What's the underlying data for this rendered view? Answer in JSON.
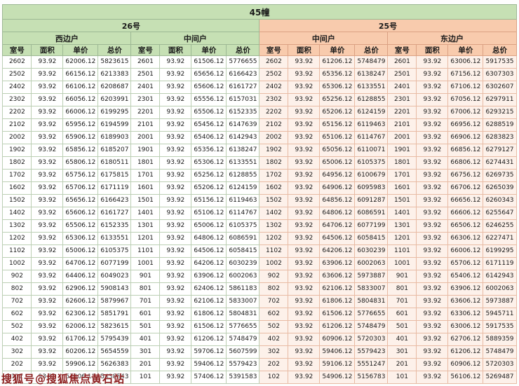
{
  "title": "45幢",
  "groups": [
    {
      "label": "26号"
    },
    {
      "label": "25号"
    }
  ],
  "sections": [
    "西边户",
    "中间户",
    "中间户",
    "东边户"
  ],
  "column_headers": [
    "室号",
    "面积",
    "单价",
    "总价"
  ],
  "watermark": "搜狐号@搜狐焦点黄石站",
  "colors": {
    "header_green": "#c6e0b4",
    "header_peach": "#f8cbad",
    "right_half_tint": "#fdf1ea",
    "left_border": "#bccfb4",
    "right_border": "#e8bba4",
    "watermark": "#8b1d1d"
  },
  "rows": [
    [
      "2602",
      "93.92",
      "62006.12",
      "5823615",
      "2601",
      "93.92",
      "61506.12",
      "5776655",
      "2602",
      "93.92",
      "61206.12",
      "5748479",
      "2601",
      "93.92",
      "63006.12",
      "5917535"
    ],
    [
      "2502",
      "93.92",
      "66156.12",
      "6213383",
      "2501",
      "93.92",
      "65656.12",
      "6166423",
      "2502",
      "93.92",
      "65356.12",
      "6138247",
      "2501",
      "93.92",
      "67156.12",
      "6307303"
    ],
    [
      "2402",
      "93.92",
      "66106.12",
      "6208687",
      "2401",
      "93.92",
      "65606.12",
      "6161727",
      "2402",
      "93.92",
      "65306.12",
      "6133551",
      "2401",
      "93.92",
      "67106.12",
      "6302607"
    ],
    [
      "2302",
      "93.92",
      "66056.12",
      "6203991",
      "2301",
      "93.92",
      "65556.12",
      "6157031",
      "2302",
      "93.92",
      "65256.12",
      "6128855",
      "2301",
      "93.92",
      "67056.12",
      "6297911"
    ],
    [
      "2202",
      "93.92",
      "66006.12",
      "6199295",
      "2201",
      "93.92",
      "65506.12",
      "6152335",
      "2202",
      "93.92",
      "65206.12",
      "6124159",
      "2201",
      "93.92",
      "67006.12",
      "6293215"
    ],
    [
      "2102",
      "93.92",
      "65956.12",
      "6194599",
      "2101",
      "93.92",
      "65456.12",
      "6147639",
      "2102",
      "93.92",
      "65156.12",
      "6119463",
      "2101",
      "93.92",
      "66956.12",
      "6288519"
    ],
    [
      "2002",
      "93.92",
      "65906.12",
      "6189903",
      "2001",
      "93.92",
      "65406.12",
      "6142943",
      "2002",
      "93.92",
      "65106.12",
      "6114767",
      "2001",
      "93.92",
      "66906.12",
      "6283823"
    ],
    [
      "1902",
      "93.92",
      "65856.12",
      "6185207",
      "1901",
      "93.92",
      "65356.12",
      "6138247",
      "1902",
      "93.92",
      "65056.12",
      "6110071",
      "1901",
      "93.92",
      "66856.12",
      "6279127"
    ],
    [
      "1802",
      "93.92",
      "65806.12",
      "6180511",
      "1801",
      "93.92",
      "65306.12",
      "6133551",
      "1802",
      "93.92",
      "65006.12",
      "6105375",
      "1801",
      "93.92",
      "66806.12",
      "6274431"
    ],
    [
      "1702",
      "93.92",
      "65756.12",
      "6175815",
      "1701",
      "93.92",
      "65256.12",
      "6128855",
      "1702",
      "93.92",
      "64956.12",
      "6100679",
      "1701",
      "93.92",
      "66756.12",
      "6269735"
    ],
    [
      "1602",
      "93.92",
      "65706.12",
      "6171119",
      "1601",
      "93.92",
      "65206.12",
      "6124159",
      "1602",
      "93.92",
      "64906.12",
      "6095983",
      "1601",
      "93.92",
      "66706.12",
      "6265039"
    ],
    [
      "1502",
      "93.92",
      "65656.12",
      "6166423",
      "1501",
      "93.92",
      "65156.12",
      "6119463",
      "1502",
      "93.92",
      "64856.12",
      "6091287",
      "1501",
      "93.92",
      "66656.12",
      "6260343"
    ],
    [
      "1402",
      "93.92",
      "65606.12",
      "6161727",
      "1401",
      "93.92",
      "65106.12",
      "6114767",
      "1402",
      "93.92",
      "64806.12",
      "6086591",
      "1401",
      "93.92",
      "66606.12",
      "6255647"
    ],
    [
      "1302",
      "93.92",
      "65506.12",
      "6152335",
      "1301",
      "93.92",
      "65006.12",
      "6105375",
      "1302",
      "93.92",
      "64706.12",
      "6077199",
      "1301",
      "93.92",
      "66506.12",
      "6246255"
    ],
    [
      "1202",
      "93.92",
      "65306.12",
      "6133551",
      "1201",
      "93.92",
      "64806.12",
      "6086591",
      "1202",
      "93.92",
      "64506.12",
      "6058415",
      "1201",
      "93.92",
      "66306.12",
      "6227471"
    ],
    [
      "1102",
      "93.92",
      "65006.12",
      "6105375",
      "1101",
      "93.92",
      "64506.12",
      "6058415",
      "1102",
      "93.92",
      "64206.12",
      "6030239",
      "1101",
      "93.92",
      "66006.12",
      "6199295"
    ],
    [
      "1002",
      "93.92",
      "64706.12",
      "6077199",
      "1001",
      "93.92",
      "64206.12",
      "6030239",
      "1002",
      "93.92",
      "63906.12",
      "6002063",
      "1001",
      "93.92",
      "65706.12",
      "6171119"
    ],
    [
      "902",
      "93.92",
      "64406.12",
      "6049023",
      "901",
      "93.92",
      "63906.12",
      "6002063",
      "902",
      "93.92",
      "63606.12",
      "5973887",
      "901",
      "93.92",
      "65406.12",
      "6142943"
    ],
    [
      "802",
      "93.92",
      "62906.12",
      "5908143",
      "801",
      "93.92",
      "62406.12",
      "5861183",
      "802",
      "93.92",
      "62106.12",
      "5833007",
      "801",
      "93.92",
      "63906.12",
      "6002063"
    ],
    [
      "702",
      "93.92",
      "62606.12",
      "5879967",
      "701",
      "93.92",
      "62106.12",
      "5833007",
      "702",
      "93.92",
      "61806.12",
      "5804831",
      "701",
      "93.92",
      "63606.12",
      "5973887"
    ],
    [
      "602",
      "93.92",
      "62306.12",
      "5851791",
      "601",
      "93.92",
      "61806.12",
      "5804831",
      "602",
      "93.92",
      "61506.12",
      "5776655",
      "601",
      "93.92",
      "63306.12",
      "5945711"
    ],
    [
      "502",
      "93.92",
      "62006.12",
      "5823615",
      "501",
      "93.92",
      "61506.12",
      "5776655",
      "502",
      "93.92",
      "61206.12",
      "5748479",
      "501",
      "93.92",
      "63006.12",
      "5917535"
    ],
    [
      "402",
      "93.92",
      "61706.12",
      "5795439",
      "401",
      "93.92",
      "61206.12",
      "5748479",
      "402",
      "93.92",
      "60906.12",
      "5720303",
      "401",
      "93.92",
      "62706.12",
      "5889359"
    ],
    [
      "302",
      "93.92",
      "60206.12",
      "5654559",
      "301",
      "93.92",
      "59706.12",
      "5607599",
      "302",
      "93.92",
      "59406.12",
      "5579423",
      "301",
      "93.92",
      "61206.12",
      "5748479"
    ],
    [
      "202",
      "93.92",
      "59906.12",
      "5626383",
      "201",
      "93.92",
      "59406.12",
      "5579423",
      "202",
      "93.92",
      "59106.12",
      "5551247",
      "201",
      "93.92",
      "60906.12",
      "5720303"
    ],
    [
      "102",
      "93.92",
      "57906.12",
      "5438543",
      "101",
      "93.92",
      "57406.12",
      "5391583",
      "102",
      "93.92",
      "54906.12",
      "5156783",
      "101",
      "93.92",
      "56106.12",
      "5269487"
    ]
  ]
}
